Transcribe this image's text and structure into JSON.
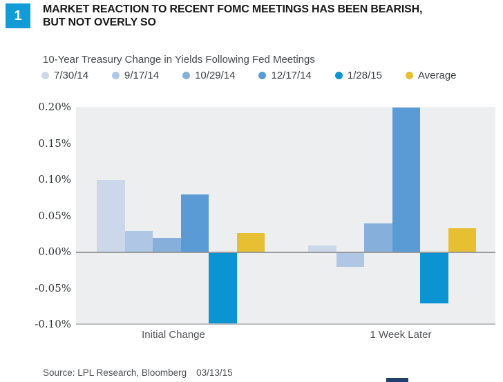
{
  "figure_number": "1",
  "title_line1": "MARKET REACTION TO RECENT FOMC MEETINGS HAS BEEN BEARISH,",
  "title_line2": "BUT NOT OVERLY SO",
  "chart_data": {
    "type": "bar",
    "title": "10-Year Treasury Change in Yields Following Fed Meetings",
    "categories": [
      "Initial Change",
      "1 Week Later"
    ],
    "series": [
      {
        "name": "7/30/14",
        "color": "#ccd7e9",
        "values": [
          0.1,
          0.01
        ]
      },
      {
        "name": "9/17/14",
        "color": "#afc6e4",
        "values": [
          0.03,
          -0.02
        ]
      },
      {
        "name": "10/29/14",
        "color": "#87afdb",
        "values": [
          0.02,
          0.04
        ]
      },
      {
        "name": "12/17/14",
        "color": "#5b9bd5",
        "values": [
          0.08,
          0.2
        ]
      },
      {
        "name": "1/28/15",
        "color": "#0c93d2",
        "values": [
          -0.1,
          -0.07
        ]
      },
      {
        "name": "Average",
        "color": "#e6bf33",
        "values": [
          0.027,
          0.033
        ]
      }
    ],
    "y_ticks": [
      "0.20%",
      "0.15%",
      "0.10%",
      "0.05%",
      "0.00%",
      "-0.05%",
      "-0.10%"
    ],
    "ylim": [
      -0.1,
      0.2
    ],
    "unit": "percent",
    "legend_position": "top",
    "grid": "zero-line-and-bottom-only",
    "plot_background": "#edeef0"
  },
  "source": {
    "text": "Source: LPL Research, Bloomberg",
    "date": "03/13/15"
  }
}
